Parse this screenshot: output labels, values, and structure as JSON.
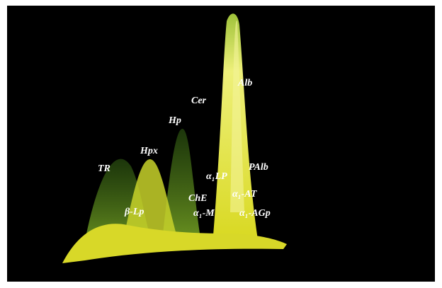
{
  "labels": {
    "tr": "TR",
    "hpx": "Hpx",
    "hp": "Hp",
    "cer": "Cer",
    "alb": "Alb",
    "palb": "PAlb",
    "a1lp": "α₁LP",
    "che": "ChE",
    "a1at": "α₁-AT",
    "a1m": "α₁-M",
    "a1agp": "α₁-AGp",
    "blp": "β-Lp"
  }
}
